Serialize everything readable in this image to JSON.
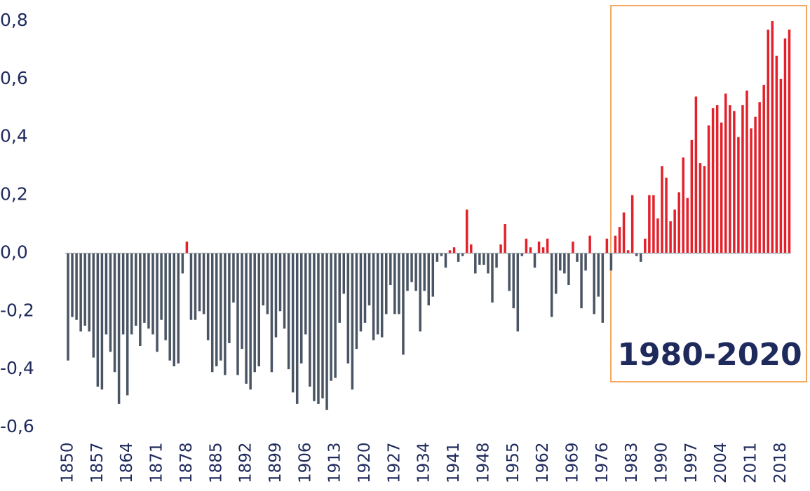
{
  "chart_data": {
    "type": "bar",
    "annotation": "1980-2020",
    "categories": [
      "1850",
      null,
      null,
      null,
      null,
      null,
      null,
      "1857",
      null,
      null,
      null,
      null,
      null,
      null,
      "1864",
      null,
      null,
      null,
      null,
      null,
      null,
      "1871",
      null,
      null,
      null,
      null,
      null,
      null,
      "1878",
      null,
      null,
      null,
      null,
      null,
      null,
      "1885",
      null,
      null,
      null,
      null,
      null,
      null,
      "1892",
      null,
      null,
      null,
      null,
      null,
      null,
      "1899",
      null,
      null,
      null,
      null,
      null,
      null,
      "1906",
      null,
      null,
      null,
      null,
      null,
      null,
      "1913",
      null,
      null,
      null,
      null,
      null,
      null,
      "1920",
      null,
      null,
      null,
      null,
      null,
      null,
      "1927",
      null,
      null,
      null,
      null,
      null,
      null,
      "1934",
      null,
      null,
      null,
      null,
      null,
      null,
      "1941",
      null,
      null,
      null,
      null,
      null,
      null,
      "1948",
      null,
      null,
      null,
      null,
      null,
      null,
      "1955",
      null,
      null,
      null,
      null,
      null,
      null,
      "1962",
      null,
      null,
      null,
      null,
      null,
      null,
      "1969",
      null,
      null,
      null,
      null,
      null,
      null,
      "1976",
      null,
      null,
      null,
      null,
      null,
      null,
      "1983",
      null,
      null,
      null,
      null,
      null,
      null,
      "1990",
      null,
      null,
      null,
      null,
      null,
      null,
      "1997",
      null,
      null,
      null,
      null,
      null,
      null,
      "2004",
      null,
      null,
      null,
      null,
      null,
      null,
      "2011",
      null,
      null,
      null,
      null,
      null,
      null,
      "2018",
      null,
      null
    ],
    "values": [
      -0.37,
      -0.22,
      -0.23,
      -0.27,
      -0.25,
      -0.27,
      -0.36,
      -0.46,
      -0.47,
      -0.28,
      -0.34,
      -0.41,
      -0.52,
      -0.28,
      -0.49,
      -0.28,
      -0.25,
      -0.32,
      -0.24,
      -0.26,
      -0.28,
      -0.34,
      -0.23,
      -0.3,
      -0.37,
      -0.39,
      -0.38,
      -0.07,
      0.04,
      -0.23,
      -0.23,
      -0.2,
      -0.21,
      -0.3,
      -0.41,
      -0.39,
      -0.37,
      -0.42,
      -0.31,
      -0.17,
      -0.42,
      -0.33,
      -0.45,
      -0.47,
      -0.41,
      -0.39,
      -0.18,
      -0.21,
      -0.41,
      -0.29,
      -0.2,
      -0.26,
      -0.4,
      -0.48,
      -0.52,
      -0.38,
      -0.28,
      -0.46,
      -0.51,
      -0.52,
      -0.5,
      -0.54,
      -0.44,
      -0.43,
      -0.24,
      -0.14,
      -0.38,
      -0.47,
      -0.33,
      -0.27,
      -0.24,
      -0.18,
      -0.3,
      -0.28,
      -0.29,
      -0.21,
      -0.11,
      -0.21,
      -0.21,
      -0.35,
      -0.13,
      -0.1,
      -0.13,
      -0.27,
      -0.13,
      -0.18,
      -0.15,
      -0.03,
      -0.01,
      -0.05,
      0.01,
      0.02,
      -0.03,
      -0.01,
      0.15,
      0.03,
      -0.07,
      -0.04,
      -0.04,
      -0.07,
      -0.17,
      -0.05,
      0.03,
      0.1,
      -0.13,
      -0.19,
      -0.27,
      -0.01,
      0.05,
      0.02,
      -0.05,
      0.04,
      0.02,
      0.05,
      -0.22,
      -0.14,
      -0.06,
      -0.07,
      -0.11,
      0.04,
      -0.03,
      -0.19,
      -0.06,
      0.06,
      -0.21,
      -0.15,
      -0.24,
      0.05,
      -0.06,
      0.06,
      0.09,
      0.14,
      0.01,
      0.2,
      -0.01,
      -0.03,
      0.05,
      0.2,
      0.2,
      0.12,
      0.3,
      0.26,
      0.11,
      0.15,
      0.21,
      0.33,
      0.19,
      0.39,
      0.54,
      0.31,
      0.3,
      0.44,
      0.5,
      0.51,
      0.45,
      0.55,
      0.51,
      0.49,
      0.4,
      0.51,
      0.56,
      0.43,
      0.47,
      0.52,
      0.58,
      0.77,
      0.8,
      0.68,
      0.6,
      0.74,
      0.77
    ],
    "positive_color": "#e3212b",
    "negative_color": "#4a5563",
    "ylim": [
      -0.6,
      0.8
    ],
    "yticks": [
      {
        "value": 0.8,
        "label": "0,8"
      },
      {
        "value": 0.6,
        "label": "0,6"
      },
      {
        "value": 0.4,
        "label": "0,4"
      },
      {
        "value": 0.2,
        "label": "0,2"
      },
      {
        "value": 0.0,
        "label": "0,0"
      },
      {
        "value": -0.2,
        "label": "-0,2"
      },
      {
        "value": -0.4,
        "label": "-0,4"
      },
      {
        "value": -0.6,
        "label": "-0,6"
      }
    ],
    "grid": false
  }
}
